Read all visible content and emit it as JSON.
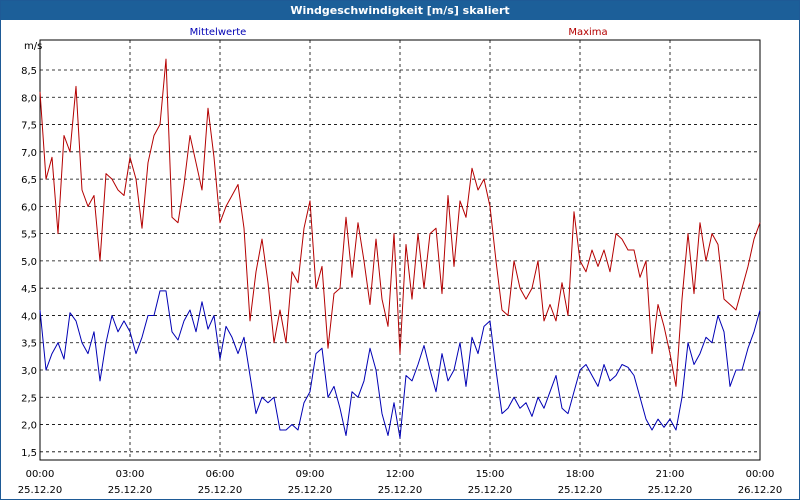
{
  "window": {
    "title": "Windgeschwindigkeit [m/s] skaliert"
  },
  "chart_data": {
    "type": "line",
    "title": "Windgeschwindigkeit [m/s] skaliert",
    "ylabel": "m/s",
    "xlabel": "",
    "ylim": [
      1.35,
      9.05
    ],
    "xlim": [
      0,
      24
    ],
    "yticks": [
      1.5,
      2.0,
      2.5,
      3.0,
      3.5,
      4.0,
      4.5,
      5.0,
      5.5,
      6.0,
      6.5,
      7.0,
      7.5,
      8.0,
      8.5
    ],
    "ytick_labels": [
      "1,5",
      "2,0",
      "2,5",
      "3,0",
      "3,5",
      "4,0",
      "4,5",
      "5,0",
      "5,5",
      "6,0",
      "6,5",
      "7,0",
      "7,5",
      "8,0",
      "8,5"
    ],
    "xticks": [
      {
        "x": 0,
        "time": "00:00",
        "date": "25.12.20"
      },
      {
        "x": 3,
        "time": "03:00",
        "date": "25.12.20"
      },
      {
        "x": 6,
        "time": "06:00",
        "date": "25.12.20"
      },
      {
        "x": 9,
        "time": "09:00",
        "date": "25.12.20"
      },
      {
        "x": 12,
        "time": "12:00",
        "date": "25.12.20"
      },
      {
        "x": 15,
        "time": "15:00",
        "date": "25.12.20"
      },
      {
        "x": 18,
        "time": "18:00",
        "date": "25.12.20"
      },
      {
        "x": 21,
        "time": "21:00",
        "date": "25.12.20"
      },
      {
        "x": 24,
        "time": "00:00",
        "date": "26.12.20"
      }
    ],
    "grid": true,
    "series": [
      {
        "name": "Mittelwerte",
        "color": "#0000b4",
        "x": [
          0,
          0.2,
          0.4,
          0.6,
          0.8,
          1.0,
          1.2,
          1.4,
          1.6,
          1.8,
          2.0,
          2.2,
          2.4,
          2.6,
          2.8,
          3.0,
          3.2,
          3.4,
          3.6,
          3.8,
          4.0,
          4.2,
          4.4,
          4.6,
          4.8,
          5.0,
          5.2,
          5.4,
          5.6,
          5.8,
          6.0,
          6.2,
          6.4,
          6.6,
          6.8,
          7.0,
          7.2,
          7.4,
          7.6,
          7.8,
          8.0,
          8.2,
          8.4,
          8.6,
          8.8,
          9.0,
          9.2,
          9.4,
          9.6,
          9.8,
          10.0,
          10.2,
          10.4,
          10.6,
          10.8,
          11.0,
          11.2,
          11.4,
          11.6,
          11.8,
          12.0,
          12.2,
          12.4,
          12.6,
          12.8,
          13.0,
          13.2,
          13.4,
          13.6,
          13.8,
          14.0,
          14.2,
          14.4,
          14.6,
          14.8,
          15.0,
          15.2,
          15.4,
          15.6,
          15.8,
          16.0,
          16.2,
          16.4,
          16.6,
          16.8,
          17.0,
          17.2,
          17.4,
          17.6,
          17.8,
          18.0,
          18.2,
          18.4,
          18.6,
          18.8,
          19.0,
          19.2,
          19.4,
          19.6,
          19.8,
          20.0,
          20.2,
          20.4,
          20.6,
          20.8,
          21.0,
          21.2,
          21.4,
          21.6,
          21.8,
          22.0,
          22.2,
          22.4,
          22.6,
          22.8,
          23.0,
          23.2,
          23.4,
          23.6,
          23.8,
          24.0
        ],
        "values": [
          4.1,
          3.0,
          3.3,
          3.5,
          3.2,
          4.05,
          3.9,
          3.5,
          3.3,
          3.7,
          2.8,
          3.5,
          4.0,
          3.7,
          3.9,
          3.7,
          3.3,
          3.6,
          4.0,
          4.0,
          4.45,
          4.45,
          3.7,
          3.55,
          3.9,
          4.1,
          3.7,
          4.25,
          3.75,
          4.0,
          3.2,
          3.8,
          3.6,
          3.3,
          3.6,
          2.9,
          2.2,
          2.5,
          2.4,
          2.5,
          1.9,
          1.9,
          2.0,
          1.9,
          2.4,
          2.6,
          3.3,
          3.4,
          2.5,
          2.7,
          2.3,
          1.8,
          2.6,
          2.5,
          2.8,
          3.4,
          3.0,
          2.2,
          1.8,
          2.4,
          1.75,
          2.9,
          2.8,
          3.1,
          3.45,
          3.0,
          2.6,
          3.3,
          2.8,
          3.0,
          3.5,
          2.7,
          3.6,
          3.3,
          3.8,
          3.9,
          3.0,
          2.2,
          2.3,
          2.5,
          2.3,
          2.4,
          2.15,
          2.5,
          2.3,
          2.6,
          2.9,
          2.3,
          2.2,
          2.6,
          3.0,
          3.1,
          2.9,
          2.7,
          3.1,
          2.8,
          2.9,
          3.1,
          3.05,
          2.9,
          2.5,
          2.1,
          1.9,
          2.1,
          1.95,
          2.1,
          1.9,
          2.5,
          3.5,
          3.1,
          3.3,
          3.6,
          3.5,
          4.0,
          3.7,
          2.7,
          3.0,
          3.0,
          3.4,
          3.7,
          4.1
        ]
      },
      {
        "name": "Maxima",
        "color": "#b40000",
        "x": [
          0,
          0.2,
          0.4,
          0.6,
          0.8,
          1.0,
          1.2,
          1.4,
          1.6,
          1.8,
          2.0,
          2.2,
          2.4,
          2.6,
          2.8,
          3.0,
          3.2,
          3.4,
          3.6,
          3.8,
          4.0,
          4.2,
          4.4,
          4.6,
          4.8,
          5.0,
          5.2,
          5.4,
          5.6,
          5.8,
          6.0,
          6.2,
          6.4,
          6.6,
          6.8,
          7.0,
          7.2,
          7.4,
          7.6,
          7.8,
          8.0,
          8.2,
          8.4,
          8.6,
          8.8,
          9.0,
          9.2,
          9.4,
          9.6,
          9.8,
          10.0,
          10.2,
          10.4,
          10.6,
          10.8,
          11.0,
          11.2,
          11.4,
          11.6,
          11.8,
          12.0,
          12.2,
          12.4,
          12.6,
          12.8,
          13.0,
          13.2,
          13.4,
          13.6,
          13.8,
          14.0,
          14.2,
          14.4,
          14.6,
          14.8,
          15.0,
          15.2,
          15.4,
          15.6,
          15.8,
          16.0,
          16.2,
          16.4,
          16.6,
          16.8,
          17.0,
          17.2,
          17.4,
          17.6,
          17.8,
          18.0,
          18.2,
          18.4,
          18.6,
          18.8,
          19.0,
          19.2,
          19.4,
          19.6,
          19.8,
          20.0,
          20.2,
          20.4,
          20.6,
          20.8,
          21.0,
          21.2,
          21.4,
          21.6,
          21.8,
          22.0,
          22.2,
          22.4,
          22.6,
          22.8,
          23.0,
          23.2,
          23.4,
          23.6,
          23.8,
          24.0
        ],
        "values": [
          8.1,
          6.5,
          6.9,
          5.5,
          7.3,
          7.0,
          8.2,
          6.3,
          6.0,
          6.2,
          5.0,
          6.6,
          6.5,
          6.3,
          6.2,
          6.9,
          6.5,
          5.6,
          6.8,
          7.3,
          7.5,
          8.7,
          5.8,
          5.7,
          6.4,
          7.3,
          6.8,
          6.3,
          7.8,
          6.9,
          5.7,
          6.0,
          6.2,
          6.4,
          5.6,
          3.9,
          4.8,
          5.4,
          4.6,
          3.5,
          4.1,
          3.5,
          4.8,
          4.6,
          5.6,
          6.1,
          4.5,
          4.9,
          3.4,
          4.4,
          4.5,
          5.8,
          4.7,
          5.7,
          5.0,
          4.2,
          5.4,
          4.3,
          3.8,
          5.5,
          3.3,
          5.3,
          4.3,
          5.5,
          4.5,
          5.5,
          5.6,
          4.4,
          6.2,
          4.9,
          6.1,
          5.8,
          6.7,
          6.3,
          6.5,
          6.0,
          5.0,
          4.1,
          4.0,
          5.0,
          4.5,
          4.3,
          4.5,
          5.0,
          3.9,
          4.2,
          3.9,
          4.6,
          4.0,
          5.9,
          5.0,
          4.8,
          5.2,
          4.9,
          5.2,
          4.8,
          5.5,
          5.4,
          5.2,
          5.2,
          4.7,
          5.0,
          3.3,
          4.2,
          3.8,
          3.3,
          2.7,
          4.3,
          5.5,
          4.4,
          5.7,
          5.0,
          5.5,
          5.3,
          4.3,
          4.2,
          4.1,
          4.5,
          4.9,
          5.4,
          5.7
        ]
      }
    ]
  }
}
